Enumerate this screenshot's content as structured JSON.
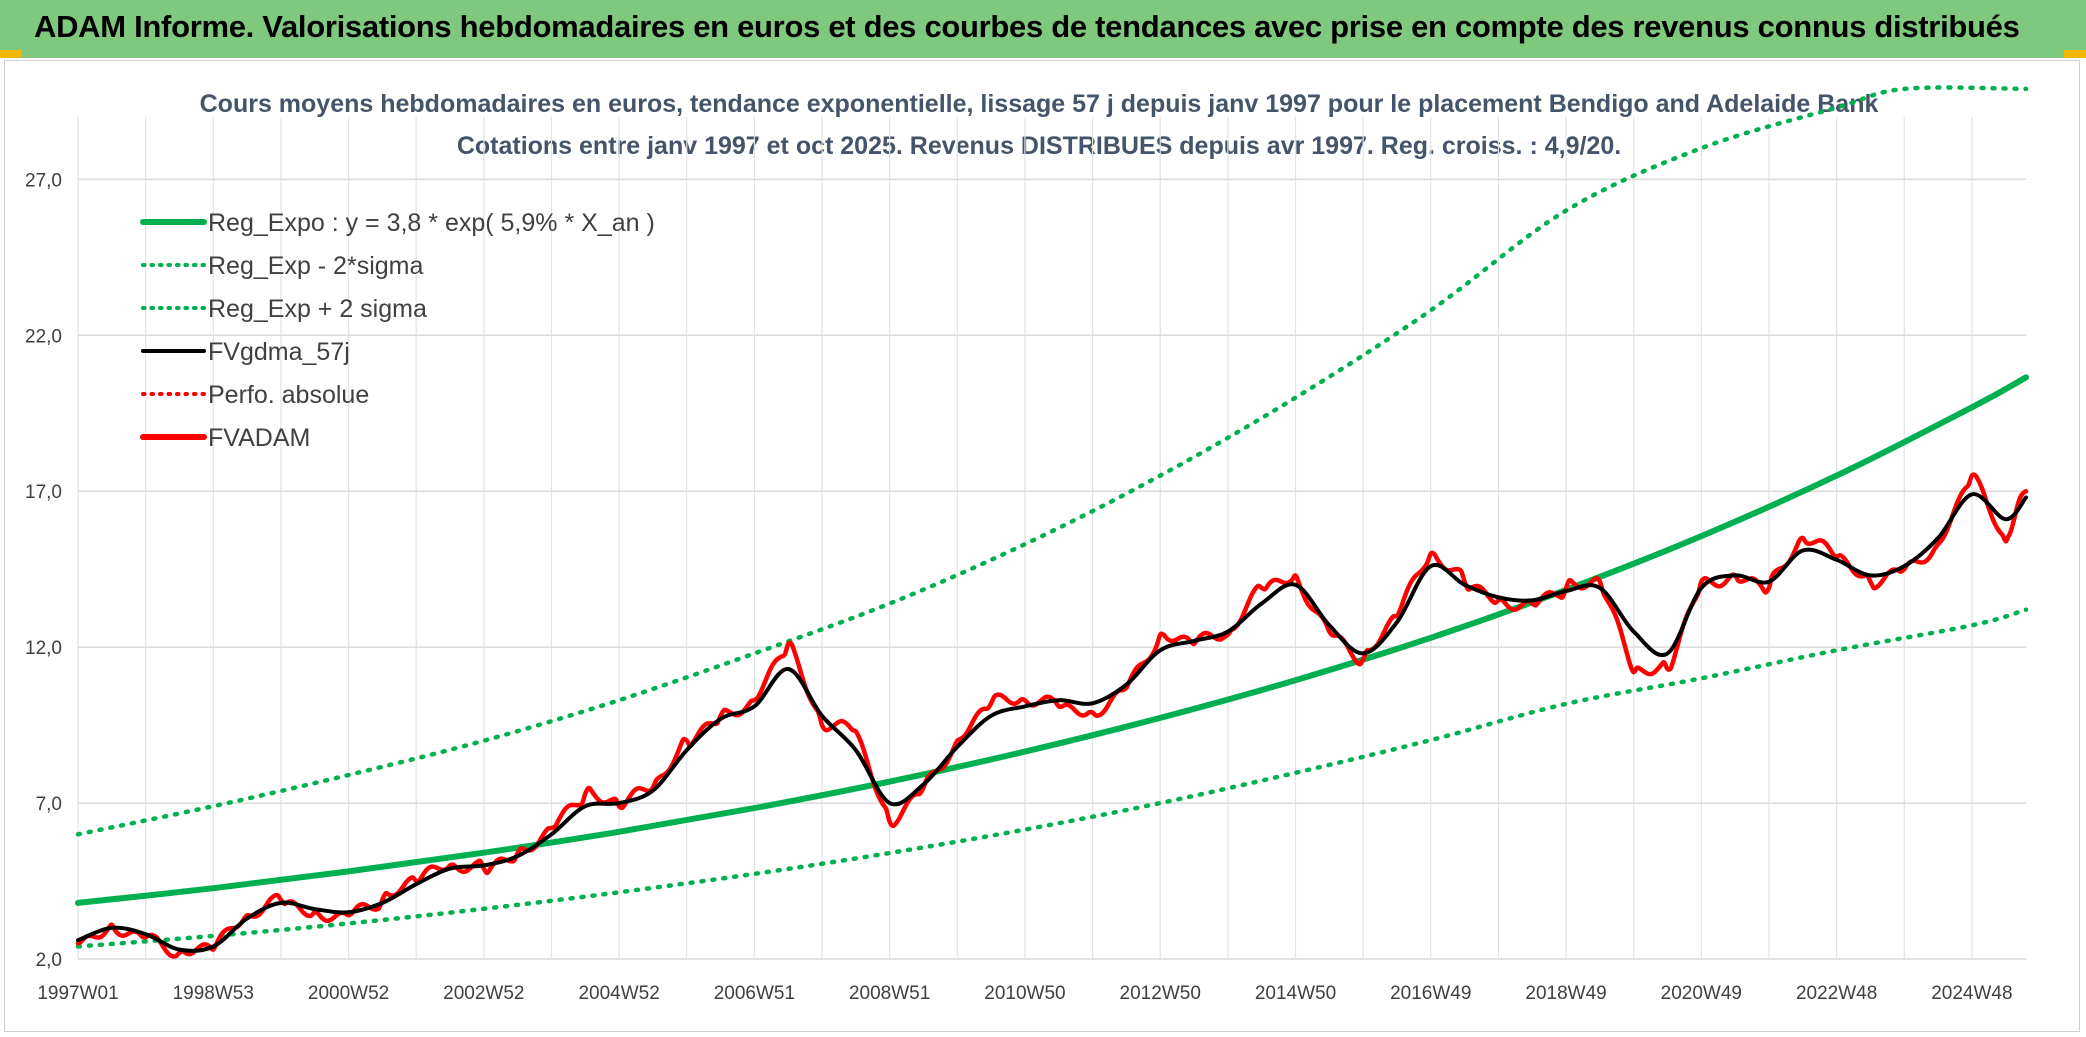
{
  "banner": {
    "title": "ADAM Informe. Valorisations hebdomadaires en euros et des courbes de tendances avec prise en compte des revenus connus distribués"
  },
  "colors": {
    "banner_bg": "#7fc97f",
    "trend": "#00b050",
    "smooth": "#000000",
    "price": "#ff0000",
    "title": "#44546a"
  },
  "chart_data": {
    "type": "line",
    "title": "Cours moyens hebdomadaires en euros, tendance exponentielle, lissage 57 j depuis janv 1997 pour le placement Bendigo and Adelaide Bank",
    "subtitle": "Cotations entre janv 1997 et oct 2025. Revenus DISTRIBUES depuis avr 1997. Reg. croiss. : 4,9/20.",
    "xlabel": "",
    "ylabel": "",
    "ylim": [
      2.0,
      29.0
    ],
    "xlim": [
      1997.0,
      2025.8
    ],
    "y_ticks": [
      "2,0",
      "7,0",
      "12,0",
      "17,0",
      "22,0",
      "27,0"
    ],
    "y_tick_values": [
      2,
      7,
      12,
      17,
      22,
      27
    ],
    "x_ticks": [
      "1997W01",
      "1998W53",
      "2000W52",
      "2002W52",
      "2004W52",
      "2006W51",
      "2008W51",
      "2010W50",
      "2012W50",
      "2014W50",
      "2016W49",
      "2018W49",
      "2020W49",
      "2022W48",
      "2024W48"
    ],
    "x_tick_values": [
      1997.0,
      1999.0,
      2001.0,
      2003.0,
      2005.0,
      2007.0,
      2009.0,
      2011.0,
      2013.0,
      2015.0,
      2017.0,
      2019.0,
      2021.0,
      2023.0,
      2025.0
    ],
    "legend": [
      {
        "label": "Reg_Expo : y = 3,8 * exp( 5,9% *  X_an )",
        "style": "solid-thick",
        "color": "#00b050"
      },
      {
        "label": "Reg_Exp - 2*sigma",
        "style": "dotted",
        "color": "#00b050"
      },
      {
        "label": "Reg_Exp + 2 sigma",
        "style": "dotted",
        "color": "#00b050"
      },
      {
        "label": "FVgdma_57j",
        "style": "solid",
        "color": "#000000"
      },
      {
        "label": "Perfo. absolue",
        "style": "dotted",
        "color": "#ff0000"
      },
      {
        "label": "FVADAM",
        "style": "solid-thick",
        "color": "#ff0000"
      }
    ],
    "legend_position": "top-left",
    "series": [
      {
        "name": "Reg_Expo",
        "x": [
          1997.0,
          1999.0,
          2001.0,
          2003.0,
          2005.0,
          2007.0,
          2009.0,
          2011.0,
          2013.0,
          2015.0,
          2017.0,
          2019.0,
          2021.0,
          2023.0,
          2025.0,
          2025.8
        ],
        "values": [
          3.8,
          4.27,
          4.81,
          5.41,
          6.08,
          6.84,
          7.69,
          8.65,
          9.73,
          10.94,
          12.3,
          13.84,
          15.56,
          17.5,
          19.69,
          20.65
        ]
      },
      {
        "name": "Reg_Exp - 2*sigma",
        "x": [
          1997.0,
          1999.0,
          2001.0,
          2003.0,
          2005.0,
          2007.0,
          2009.0,
          2011.0,
          2013.0,
          2015.0,
          2017.0,
          2019.0,
          2021.0,
          2023.0,
          2025.0,
          2025.8
        ],
        "values": [
          2.4,
          2.74,
          3.14,
          3.61,
          4.14,
          4.73,
          5.4,
          6.15,
          7.0,
          7.97,
          9.02,
          10.18,
          11.0,
          11.9,
          12.7,
          13.2
        ]
      },
      {
        "name": "Reg_Exp + 2 sigma",
        "x": [
          1997.0,
          1999.0,
          2001.0,
          2003.0,
          2005.0,
          2007.0,
          2009.0,
          2011.0,
          2013.0,
          2015.0,
          2017.0,
          2019.0,
          2021.0,
          2023.0,
          2024.0,
          2025.8
        ],
        "values": [
          6.0,
          6.9,
          7.9,
          9.0,
          10.3,
          11.8,
          13.4,
          15.3,
          17.5,
          20.0,
          22.8,
          26.0,
          28.0,
          29.3,
          29.9,
          29.9
        ]
      },
      {
        "name": "FVgdma_57j",
        "x": [
          1997.0,
          1997.5,
          1998.0,
          1998.5,
          1999.0,
          1999.5,
          2000.0,
          2000.5,
          2001.0,
          2001.5,
          2002.0,
          2002.5,
          2003.0,
          2003.5,
          2004.0,
          2004.5,
          2005.0,
          2005.5,
          2006.0,
          2006.5,
          2007.0,
          2007.5,
          2008.0,
          2008.5,
          2009.0,
          2009.5,
          2010.0,
          2010.5,
          2011.0,
          2011.5,
          2012.0,
          2012.5,
          2013.0,
          2013.5,
          2014.0,
          2014.5,
          2015.0,
          2015.5,
          2016.0,
          2016.5,
          2017.0,
          2017.5,
          2018.0,
          2018.5,
          2019.0,
          2019.5,
          2020.0,
          2020.5,
          2021.0,
          2021.5,
          2022.0,
          2022.5,
          2023.0,
          2023.5,
          2024.0,
          2024.5,
          2025.0,
          2025.5,
          2025.8
        ],
        "values": [
          2.6,
          3.0,
          2.8,
          2.3,
          2.4,
          3.3,
          3.8,
          3.6,
          3.5,
          3.8,
          4.4,
          4.9,
          5.0,
          5.3,
          6.0,
          6.9,
          7.0,
          7.4,
          8.7,
          9.7,
          10.1,
          11.3,
          9.8,
          8.7,
          7.0,
          7.6,
          8.8,
          9.8,
          10.1,
          10.3,
          10.2,
          10.8,
          11.9,
          12.2,
          12.5,
          13.4,
          14.0,
          12.7,
          11.8,
          12.8,
          14.6,
          14.0,
          13.6,
          13.5,
          13.8,
          13.9,
          12.5,
          11.8,
          13.9,
          14.3,
          14.1,
          15.1,
          14.8,
          14.3,
          14.6,
          15.5,
          16.9,
          16.1,
          16.8
        ]
      },
      {
        "name": "FVADAM",
        "x": [
          1997.0,
          1997.5,
          1998.0,
          1998.5,
          1999.0,
          1999.5,
          2000.0,
          2000.5,
          2001.0,
          2001.5,
          2002.0,
          2002.5,
          2003.0,
          2003.5,
          2004.0,
          2004.5,
          2005.0,
          2005.5,
          2006.0,
          2006.5,
          2007.0,
          2007.5,
          2008.0,
          2008.5,
          2009.0,
          2009.5,
          2010.0,
          2010.5,
          2011.0,
          2011.5,
          2012.0,
          2012.5,
          2013.0,
          2013.5,
          2014.0,
          2014.5,
          2015.0,
          2015.5,
          2016.0,
          2016.5,
          2017.0,
          2017.5,
          2018.0,
          2018.5,
          2019.0,
          2019.5,
          2020.0,
          2020.5,
          2021.0,
          2021.5,
          2022.0,
          2022.5,
          2023.0,
          2023.5,
          2024.0,
          2024.5,
          2025.0,
          2025.5,
          2025.8
        ],
        "values": [
          2.5,
          3.1,
          2.7,
          2.2,
          2.3,
          3.4,
          3.9,
          3.5,
          3.4,
          3.9,
          4.5,
          5.0,
          4.9,
          5.4,
          6.2,
          7.3,
          6.9,
          7.5,
          9.0,
          9.8,
          10.3,
          12.1,
          9.5,
          9.3,
          6.4,
          7.5,
          9.0,
          10.2,
          10.3,
          10.1,
          9.9,
          10.7,
          12.4,
          12.1,
          12.4,
          13.9,
          14.3,
          12.5,
          11.6,
          13.0,
          15.0,
          14.1,
          13.5,
          13.4,
          13.9,
          14.1,
          11.2,
          11.3,
          14.1,
          14.3,
          13.9,
          15.5,
          14.9,
          14.1,
          14.5,
          15.3,
          17.5,
          15.4,
          17.0
        ]
      }
    ]
  }
}
